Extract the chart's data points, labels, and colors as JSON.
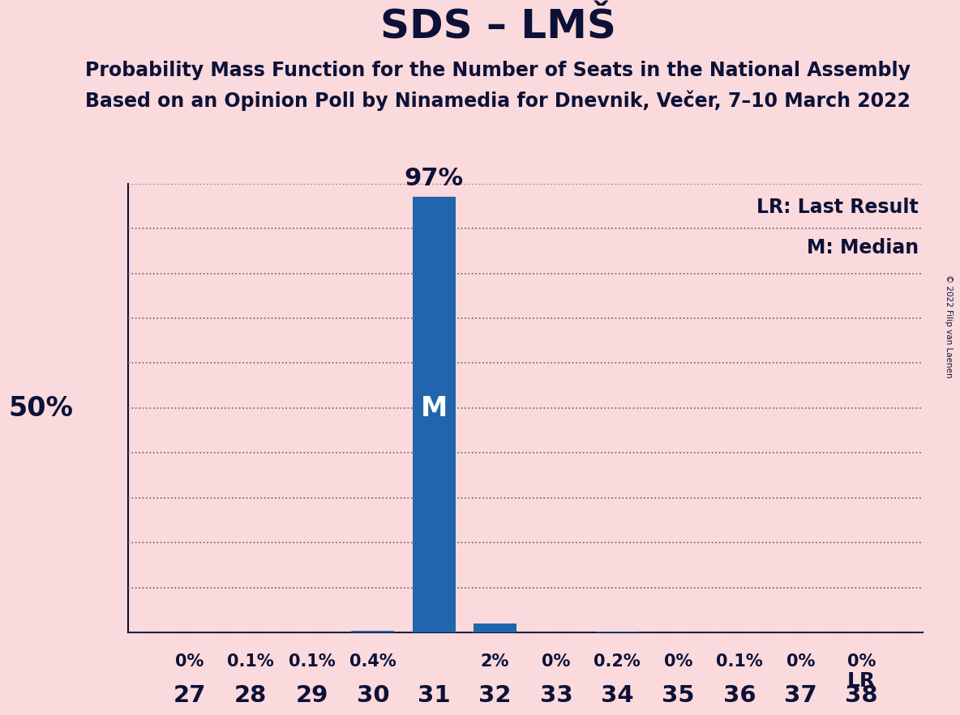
{
  "title": "SDS – LMŠ",
  "subtitle1": "Probability Mass Function for the Number of Seats in the National Assembly",
  "subtitle2": "Based on an Opinion Poll by Ninamedia for Dnevnik, Večer, 7–10 March 2022",
  "copyright": "© 2022 Filip van Laenen",
  "seats": [
    27,
    28,
    29,
    30,
    31,
    32,
    33,
    34,
    35,
    36,
    37,
    38
  ],
  "probabilities": [
    0.0,
    0.1,
    0.1,
    0.4,
    97.0,
    2.0,
    0.0,
    0.2,
    0.0,
    0.1,
    0.0,
    0.0
  ],
  "prob_labels": [
    "0%",
    "0.1%",
    "0.1%",
    "0.4%",
    "97%",
    "2%",
    "0%",
    "0.2%",
    "0%",
    "0.1%",
    "0%",
    "0%"
  ],
  "median_seat": 31,
  "last_result_seat": 38,
  "bar_color_default": "#2166ac",
  "bar_color_lr": "#FFE600",
  "background_color": "#FADADD",
  "text_color": "#0d1137",
  "ylim": [
    0,
    100
  ],
  "ylabel_50": "50%",
  "legend_lr": "LR: Last Result",
  "legend_m": "M: Median"
}
